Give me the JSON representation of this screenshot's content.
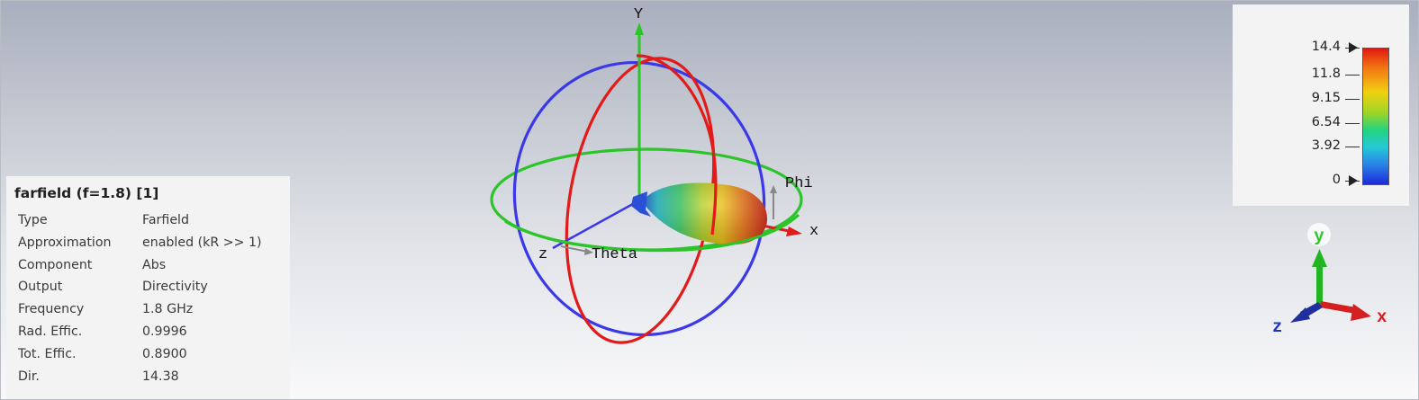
{
  "scene": {
    "axes": {
      "x": "x",
      "y": "Y",
      "z": "z"
    },
    "angle_labels": {
      "phi": "Phi",
      "theta": "Theta"
    },
    "triad": {
      "x": "x",
      "y": "y",
      "z": "z"
    }
  },
  "info": {
    "title": "farfield (f=1.8) [1]",
    "rows": [
      {
        "key": "Type",
        "value": "Farfield"
      },
      {
        "key": "Approximation",
        "value": "enabled (kR >> 1)"
      },
      {
        "key": "Component",
        "value": "Abs"
      },
      {
        "key": "Output",
        "value": "Directivity"
      },
      {
        "key": "Frequency",
        "value": "1.8 GHz"
      },
      {
        "key": "Rad. Effic.",
        "value": "0.9996"
      },
      {
        "key": "Tot. Effic.",
        "value": "0.8900"
      },
      {
        "key": "Dir.",
        "value": "14.38"
      }
    ]
  },
  "legend": {
    "ticks": [
      "14.4",
      "11.8",
      "9.15",
      "6.54",
      "3.92",
      "0"
    ],
    "colors": [
      "#e01a10",
      "#f37a13",
      "#f2cf11",
      "#9fd625",
      "#25d37e",
      "#23c9d8",
      "#2a7fe8",
      "#1b2cd6"
    ]
  }
}
